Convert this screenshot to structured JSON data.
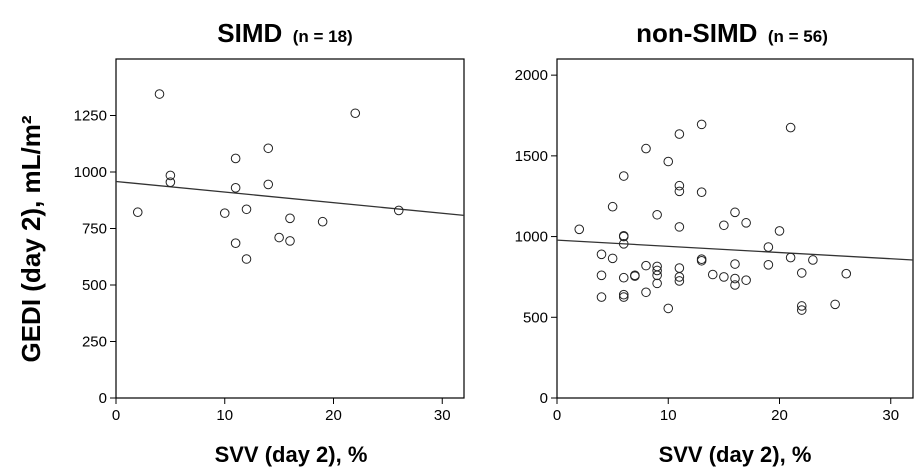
{
  "chart_data": [
    {
      "type": "scatter",
      "title": "SIMD",
      "subtitle": "(n = 18)",
      "xlabel": "SVV (day 2), %",
      "ylabel": "GEDI (day 2), mL/m²",
      "xlim": [
        0,
        32
      ],
      "ylim": [
        0,
        1500
      ],
      "xticks": [
        0,
        10,
        20,
        30
      ],
      "yticks": [
        0,
        250,
        500,
        750,
        1000,
        1250
      ],
      "grid": false,
      "fit_line": {
        "x": [
          0,
          32
        ],
        "y": [
          958,
          808
        ]
      },
      "points": [
        {
          "x": 2,
          "y": 822
        },
        {
          "x": 4,
          "y": 1345
        },
        {
          "x": 5,
          "y": 985
        },
        {
          "x": 5,
          "y": 955
        },
        {
          "x": 10,
          "y": 818
        },
        {
          "x": 11,
          "y": 1060
        },
        {
          "x": 11,
          "y": 930
        },
        {
          "x": 11,
          "y": 685
        },
        {
          "x": 12,
          "y": 835
        },
        {
          "x": 12,
          "y": 615
        },
        {
          "x": 14,
          "y": 1105
        },
        {
          "x": 14,
          "y": 945
        },
        {
          "x": 15,
          "y": 710
        },
        {
          "x": 16,
          "y": 795
        },
        {
          "x": 16,
          "y": 695
        },
        {
          "x": 19,
          "y": 780
        },
        {
          "x": 22,
          "y": 1260
        },
        {
          "x": 26,
          "y": 830
        }
      ]
    },
    {
      "type": "scatter",
      "title": "non-SIMD",
      "subtitle": "(n = 56)",
      "xlabel": "SVV (day 2), %",
      "ylabel": "",
      "xlim": [
        0,
        32
      ],
      "ylim": [
        0,
        2100
      ],
      "xticks": [
        0,
        10,
        20,
        30
      ],
      "yticks": [
        0,
        500,
        1000,
        1500,
        2000
      ],
      "grid": false,
      "fit_line": {
        "x": [
          0,
          32
        ],
        "y": [
          978,
          855
        ]
      },
      "points": [
        {
          "x": 2,
          "y": 1045
        },
        {
          "x": 4,
          "y": 890
        },
        {
          "x": 4,
          "y": 760
        },
        {
          "x": 4,
          "y": 625
        },
        {
          "x": 5,
          "y": 1185
        },
        {
          "x": 5,
          "y": 865
        },
        {
          "x": 6,
          "y": 1375
        },
        {
          "x": 6,
          "y": 1005
        },
        {
          "x": 6,
          "y": 1000
        },
        {
          "x": 6,
          "y": 955
        },
        {
          "x": 6,
          "y": 745
        },
        {
          "x": 6,
          "y": 640
        },
        {
          "x": 6,
          "y": 625
        },
        {
          "x": 7,
          "y": 760
        },
        {
          "x": 7,
          "y": 755
        },
        {
          "x": 8,
          "y": 1545
        },
        {
          "x": 8,
          "y": 820
        },
        {
          "x": 8,
          "y": 655
        },
        {
          "x": 9,
          "y": 1135
        },
        {
          "x": 9,
          "y": 815
        },
        {
          "x": 9,
          "y": 790
        },
        {
          "x": 9,
          "y": 760
        },
        {
          "x": 9,
          "y": 710
        },
        {
          "x": 10,
          "y": 1465
        },
        {
          "x": 10,
          "y": 555
        },
        {
          "x": 11,
          "y": 1635
        },
        {
          "x": 11,
          "y": 1315
        },
        {
          "x": 11,
          "y": 1280
        },
        {
          "x": 11,
          "y": 1060
        },
        {
          "x": 11,
          "y": 805
        },
        {
          "x": 11,
          "y": 750
        },
        {
          "x": 11,
          "y": 725
        },
        {
          "x": 13,
          "y": 1695
        },
        {
          "x": 13,
          "y": 1275
        },
        {
          "x": 13,
          "y": 860
        },
        {
          "x": 13,
          "y": 850
        },
        {
          "x": 14,
          "y": 765
        },
        {
          "x": 15,
          "y": 1070
        },
        {
          "x": 15,
          "y": 750
        },
        {
          "x": 16,
          "y": 1150
        },
        {
          "x": 16,
          "y": 830
        },
        {
          "x": 16,
          "y": 740
        },
        {
          "x": 16,
          "y": 700
        },
        {
          "x": 17,
          "y": 1085
        },
        {
          "x": 17,
          "y": 730
        },
        {
          "x": 19,
          "y": 935
        },
        {
          "x": 19,
          "y": 825
        },
        {
          "x": 20,
          "y": 1035
        },
        {
          "x": 21,
          "y": 1675
        },
        {
          "x": 21,
          "y": 870
        },
        {
          "x": 22,
          "y": 775
        },
        {
          "x": 22,
          "y": 570
        },
        {
          "x": 22,
          "y": 545
        },
        {
          "x": 23,
          "y": 855
        },
        {
          "x": 25,
          "y": 580
        },
        {
          "x": 26,
          "y": 770
        }
      ]
    }
  ]
}
